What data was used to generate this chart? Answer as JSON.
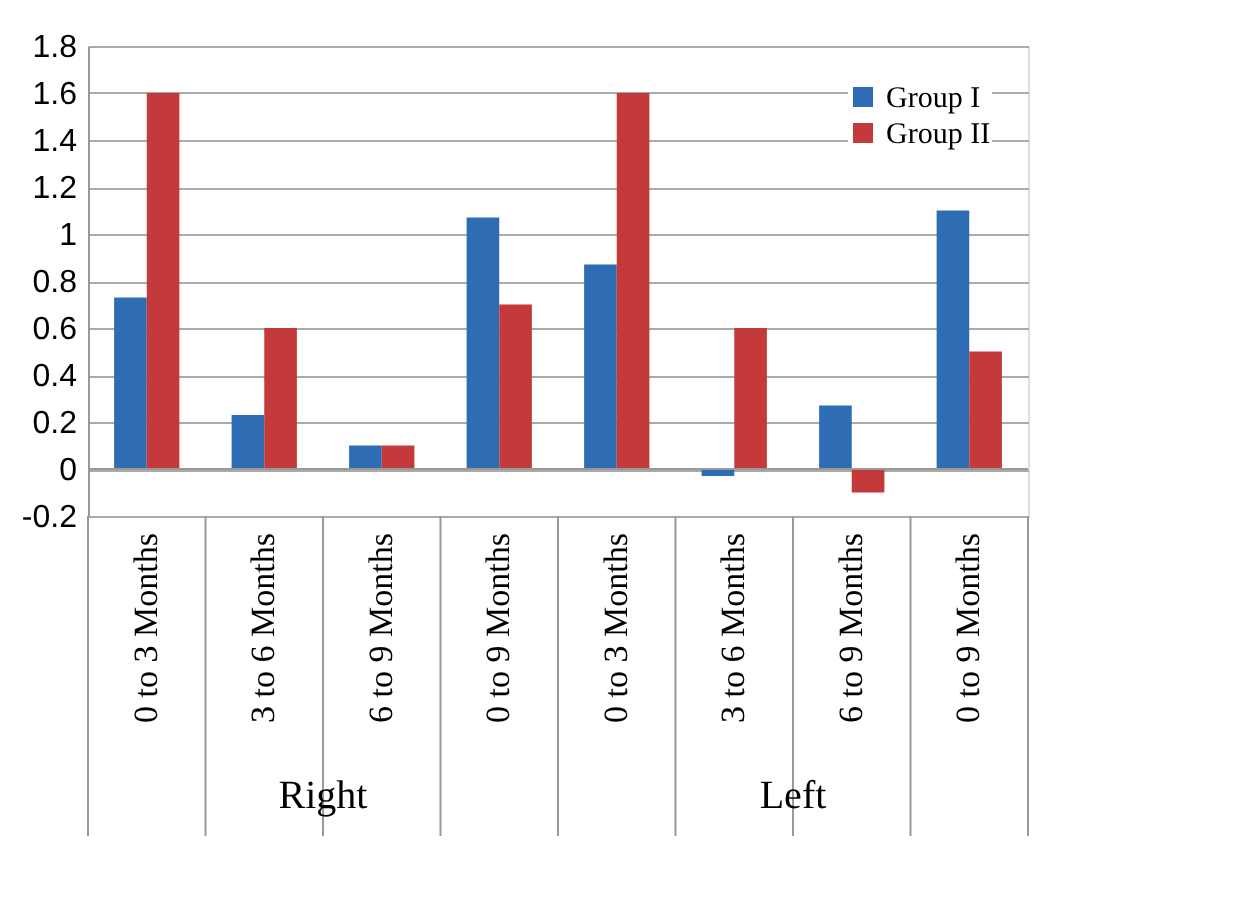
{
  "chart_data": {
    "type": "bar",
    "categories": [
      "0 to 3 Months",
      "3 to 6 Months",
      "6 to 9 Months",
      "0 to 9 Months",
      "0 to 3 Months",
      "3 to 6 Months",
      "6 to 9 Months",
      "0 to 9 Months"
    ],
    "series": [
      {
        "name": "Group I",
        "color": "#2e6db4",
        "values": [
          0.73,
          0.23,
          0.1,
          1.07,
          0.87,
          -0.03,
          0.27,
          1.1
        ]
      },
      {
        "name": "Group II",
        "color": "#c43a3a",
        "values": [
          1.6,
          0.6,
          0.1,
          0.7,
          1.6,
          0.6,
          -0.1,
          0.5
        ]
      }
    ],
    "annotations": [
      "Right",
      "Left"
    ],
    "ylim": [
      -0.2,
      1.8
    ],
    "yticks": [
      -0.2,
      0,
      0.2,
      0.4,
      0.6,
      0.8,
      1,
      1.2,
      1.4,
      1.6,
      1.8
    ],
    "grid": "y",
    "legend": "top right"
  }
}
